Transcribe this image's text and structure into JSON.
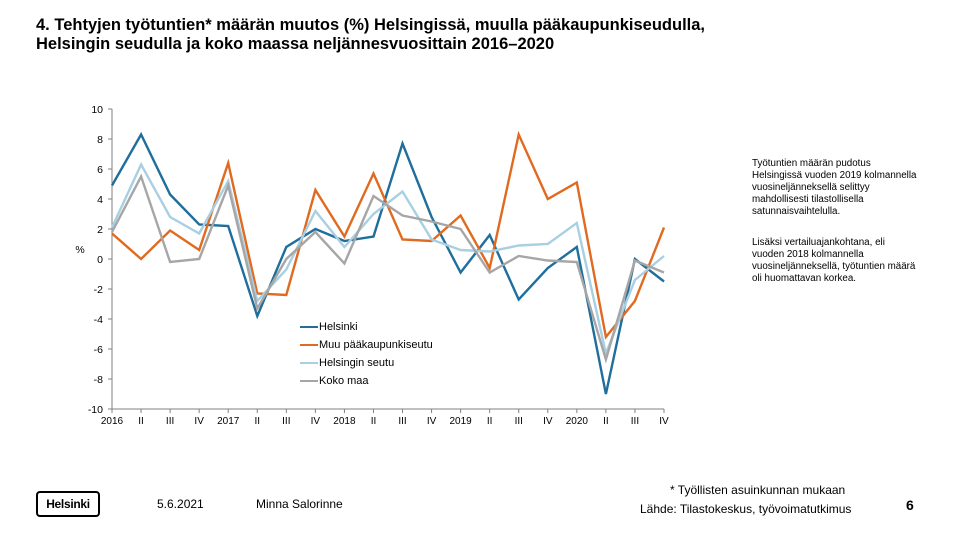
{
  "title": {
    "line1": "4. Tehtyjen työtuntien* määrän muutos (%) Helsingissä, muulla pääkaupunkiseudulla,",
    "line2": "Helsingin seudulla ja koko maassa neljännesvuosittain 2016–2020"
  },
  "chart_data": {
    "type": "line",
    "ylabel": "%",
    "ylim": [
      -10,
      10
    ],
    "yticks": [
      "10",
      "8",
      "6",
      "4",
      "2",
      "0",
      "-2",
      "-4",
      "-6",
      "-8",
      "-10"
    ],
    "categories": [
      "2016",
      "II",
      "III",
      "IV",
      "2017",
      "II",
      "III",
      "IV",
      "2018",
      "II",
      "III",
      "IV",
      "2019",
      "II",
      "III",
      "IV",
      "2020",
      "II",
      "III",
      "IV"
    ],
    "grid": false,
    "legend_position": "bottom-center",
    "series": [
      {
        "name": "Helsinki",
        "color": "#1f6e9c",
        "values": [
          4.9,
          8.3,
          4.3,
          2.3,
          2.2,
          -3.8,
          0.8,
          2.0,
          1.2,
          1.5,
          7.7,
          2.8,
          -0.9,
          1.6,
          -2.7,
          -0.6,
          0.8,
          -9.0,
          0.0,
          -1.5
        ]
      },
      {
        "name": "Muu pääkaupunkiseutu",
        "color": "#e06a1f",
        "values": [
          1.7,
          0.0,
          1.9,
          0.6,
          6.4,
          -2.3,
          -2.4,
          4.6,
          1.5,
          5.7,
          1.3,
          1.2,
          2.9,
          -0.6,
          8.3,
          4.0,
          5.1,
          -5.2,
          -2.8,
          2.1
        ]
      },
      {
        "name": "Helsingin seutu",
        "color": "#a9cfe3",
        "values": [
          2.1,
          6.3,
          2.8,
          1.7,
          5.2,
          -2.8,
          -0.7,
          3.2,
          0.8,
          3.0,
          4.5,
          1.3,
          0.6,
          0.5,
          0.9,
          1.0,
          2.4,
          -6.3,
          -1.4,
          0.2
        ]
      },
      {
        "name": "Koko maa",
        "color": "#a6a6a6",
        "values": [
          1.8,
          5.5,
          -0.2,
          0.0,
          4.9,
          -3.3,
          0.0,
          1.8,
          -0.3,
          4.2,
          2.9,
          2.5,
          2.0,
          -0.9,
          0.2,
          -0.1,
          -0.2,
          -6.7,
          -0.1,
          -0.9
        ]
      }
    ]
  },
  "notes": {
    "note1": "Työtuntien määrän pudotus Helsingissä vuoden 2019 kolmannella vuosineljänneksellä selittyy mahdollisesti tilastollisella satunnaisvaihtelulla.",
    "note2": "Lisäksi vertailuajankohtana, eli vuoden 2018 kolmannella vuosineljänneksellä, työtuntien määrä oli huomattavan korkea."
  },
  "footer": {
    "logo_text": "Helsinki",
    "date": "5.6.2021",
    "author": "Minna Salorinne",
    "footnote": "* Työllisten asuinkunnan mukaan",
    "source": "Lähde: Tilastokeskus, työvoimatutkimus",
    "page_number": "6"
  }
}
